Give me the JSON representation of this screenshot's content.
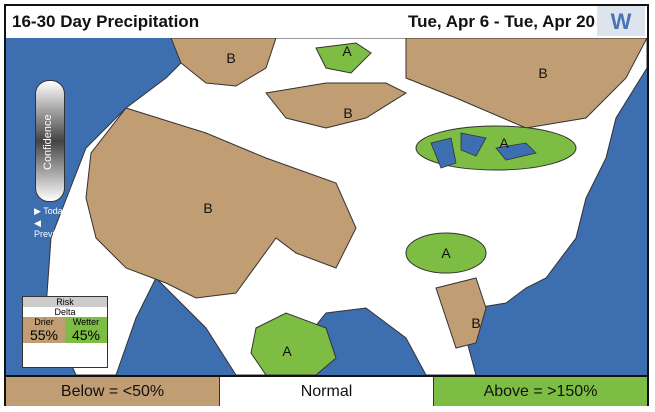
{
  "header": {
    "title": "16-30 Day Precipitation",
    "dates": "Tue, Apr 6 - Tue, Apr 20",
    "logo": "weather-company-logo"
  },
  "confidence": {
    "label": "Confidence",
    "today": "Today",
    "previous": "Previous"
  },
  "risk_box": {
    "title": "Risk",
    "delta": "Delta",
    "drier_label": "Drier",
    "wetter_label": "Wetter",
    "drier_pct": "55%",
    "wetter_pct": "45%"
  },
  "map_labels": [
    {
      "text": "B",
      "category": "below"
    },
    {
      "text": "A",
      "category": "above"
    },
    {
      "text": "B",
      "category": "below"
    },
    {
      "text": "B",
      "category": "below"
    },
    {
      "text": "A",
      "category": "above"
    },
    {
      "text": "B",
      "category": "below"
    },
    {
      "text": "A",
      "category": "above"
    },
    {
      "text": "A",
      "category": "above"
    },
    {
      "text": "B",
      "category": "below"
    }
  ],
  "legend": {
    "below": "Below = <50%",
    "normal": "Normal",
    "above": "Above = >150%"
  },
  "colors": {
    "below": "#c09d72",
    "above": "#7dbd43",
    "normal": "#ffffff",
    "water": "#3d6eb0"
  }
}
